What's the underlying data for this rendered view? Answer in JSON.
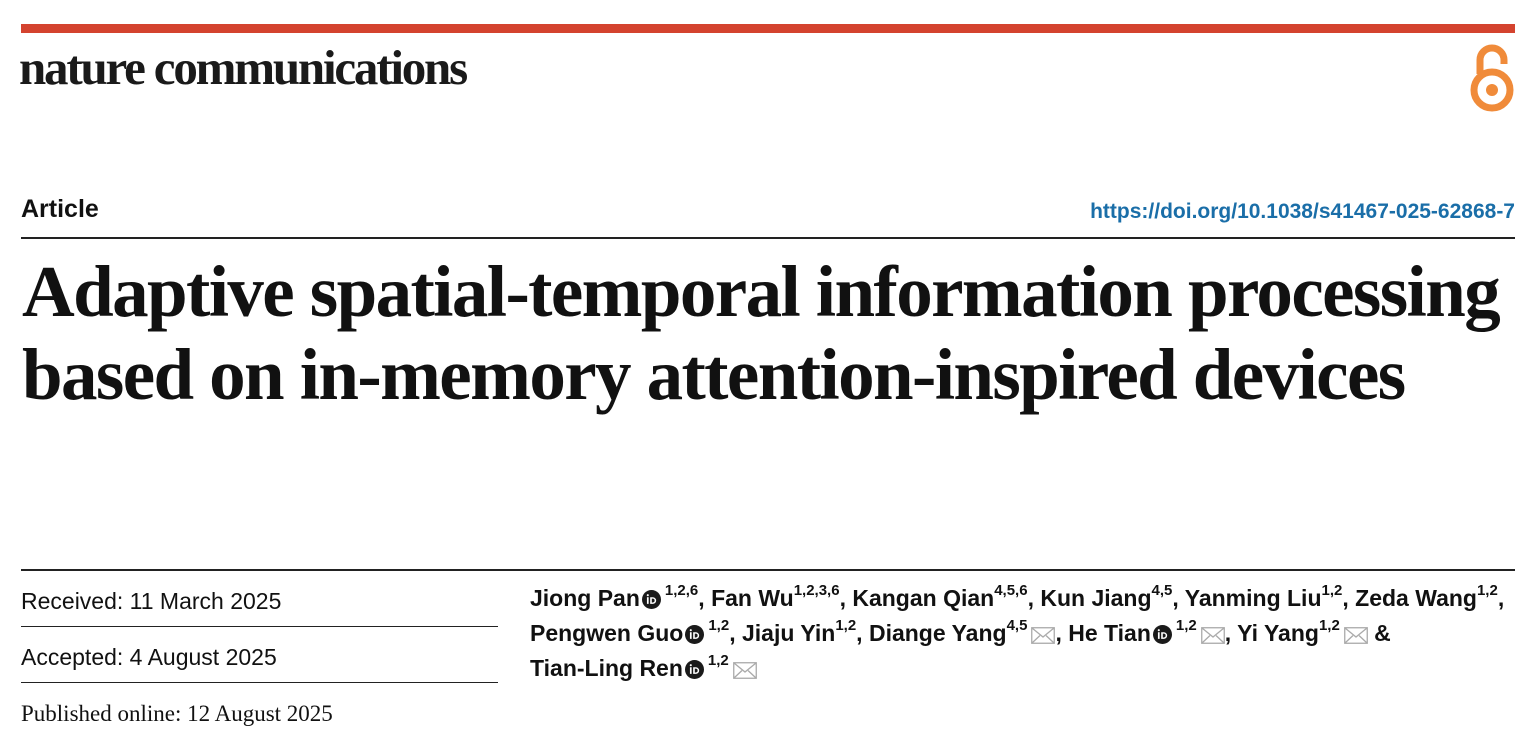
{
  "header": {
    "journal_name": "nature communications",
    "open_access_icon": "open-access-lock-icon",
    "accent_color": "#d4432f",
    "oa_color": "#f08b3a"
  },
  "meta": {
    "article_type": "Article",
    "doi": "https://doi.org/10.1038/s41467-025-62868-7",
    "doi_color": "#1a6ea8"
  },
  "title": "Adaptive spatial-temporal information processing based on in-memory attention-inspired devices",
  "dates": {
    "received": "Received: 11 March 2025",
    "accepted": "Accepted: 4 August 2025",
    "published": "Published online: 12 August 2025"
  },
  "authors": [
    {
      "name": "Jiong Pan",
      "orcid": true,
      "affil": "1,2,6",
      "email": false,
      "sep": ", "
    },
    {
      "name": "Fan Wu",
      "orcid": false,
      "affil": "1,2,3,6",
      "email": false,
      "sep": ", "
    },
    {
      "name": "Kangan Qian",
      "orcid": false,
      "affil": "4,5,6",
      "email": false,
      "sep": ", "
    },
    {
      "name": "Kun Jiang",
      "orcid": false,
      "affil": "4,5",
      "email": false,
      "sep": ", "
    },
    {
      "name": "Yanming Liu",
      "orcid": false,
      "affil": "1,2",
      "email": false,
      "sep": ", "
    },
    {
      "name": "Zeda Wang",
      "orcid": false,
      "affil": "1,2",
      "email": false,
      "sep": ", "
    },
    {
      "name": "Pengwen Guo",
      "orcid": true,
      "affil": "1,2",
      "email": false,
      "sep": ", "
    },
    {
      "name": "Jiaju Yin",
      "orcid": false,
      "affil": "1,2",
      "email": false,
      "sep": ", "
    },
    {
      "name": "Diange Yang",
      "orcid": false,
      "affil": "4,5",
      "email": true,
      "sep": ", "
    },
    {
      "name": "He Tian",
      "orcid": true,
      "affil": "1,2",
      "email": true,
      "sep": ", "
    },
    {
      "name": "Yi Yang",
      "orcid": false,
      "affil": "1,2",
      "email": true,
      "sep": " & "
    },
    {
      "name": "Tian-Ling Ren",
      "orcid": true,
      "affil": "1,2",
      "email": true,
      "sep": ""
    }
  ]
}
